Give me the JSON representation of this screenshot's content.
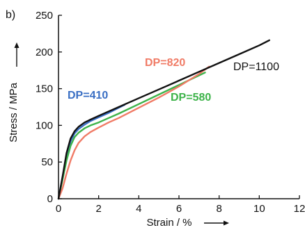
{
  "chart_data": {
    "type": "line",
    "panel_label": "b)",
    "title": "",
    "xlabel": "Strain / %",
    "ylabel": "Stress / MPa",
    "xlim": [
      0,
      12
    ],
    "ylim": [
      0,
      250
    ],
    "xticks": [
      0,
      2,
      4,
      6,
      8,
      10,
      12
    ],
    "yticks": [
      0,
      50,
      100,
      150,
      200,
      250
    ],
    "grid": false,
    "legend": "inline labels",
    "series": [
      {
        "name": "DP=410",
        "color": "#3a6fc4",
        "x": [
          0,
          0.2,
          0.4,
          0.6,
          0.8,
          1.0,
          1.3,
          1.6,
          2.0,
          2.5,
          3.0,
          3.3
        ],
        "y": [
          0,
          30,
          58,
          78,
          89,
          95,
          101,
          106,
          111,
          117,
          124,
          128
        ]
      },
      {
        "name": "DP=580",
        "color": "#3db34a",
        "x": [
          0,
          0.2,
          0.4,
          0.6,
          0.8,
          1.0,
          1.3,
          1.6,
          2.0,
          2.5,
          3.0,
          4.0,
          5.0,
          6.0,
          7.0,
          7.3
        ],
        "y": [
          0,
          26,
          52,
          72,
          84,
          90,
          96,
          100,
          104,
          110,
          116,
          129,
          142,
          155,
          168,
          172
        ]
      },
      {
        "name": "DP=820",
        "color": "#f07b66",
        "x": [
          0,
          0.2,
          0.4,
          0.6,
          0.8,
          1.0,
          1.3,
          1.6,
          2.0,
          2.5,
          3.0,
          4.0,
          5.0,
          6.0,
          7.0,
          7.5
        ],
        "y": [
          0,
          14,
          34,
          52,
          66,
          76,
          85,
          91,
          97,
          104,
          110,
          124,
          138,
          153,
          170,
          180
        ]
      },
      {
        "name": "DP=1100",
        "color": "#111111",
        "x": [
          0,
          0.2,
          0.4,
          0.6,
          0.8,
          1.0,
          1.3,
          1.6,
          2.0,
          2.5,
          3.0,
          4.0,
          5.0,
          6.0,
          7.0,
          8.0,
          9.0,
          10.0,
          10.5
        ],
        "y": [
          0,
          30,
          62,
          82,
          92,
          98,
          104,
          108,
          113,
          119,
          125,
          137,
          149,
          161,
          173,
          185,
          197,
          209,
          216
        ]
      }
    ]
  }
}
